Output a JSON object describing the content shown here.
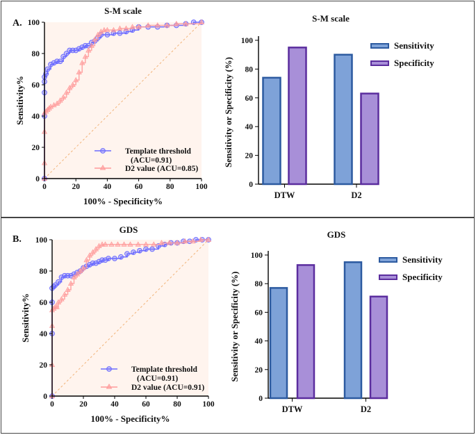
{
  "panels": [
    {
      "label": "A.",
      "roc": {
        "type": "line",
        "title": "S-M scale",
        "xlabel": "100% - Specificity%",
        "ylabel": "Sensitivity%",
        "xlim": [
          0,
          100
        ],
        "ylim": [
          0,
          100
        ],
        "ticks": [
          0,
          20,
          40,
          60,
          80,
          100
        ],
        "series": [
          {
            "name": "Template threshold",
            "legend_line1": "Template threshold",
            "legend_line2": "(ACU=0.91)",
            "color": "#6b6bff",
            "marker": "circle",
            "x": [
              0,
              0,
              0,
              0,
              0,
              1,
              2,
              4,
              6,
              8,
              10,
              12,
              14,
              16,
              18,
              20,
              22,
              24,
              26,
              28,
              30,
              32,
              34,
              36,
              40,
              44,
              48,
              52,
              56,
              60,
              66,
              72,
              78,
              84,
              90,
              95,
              100
            ],
            "y": [
              0,
              40,
              55,
              62,
              65,
              67,
              70,
              73,
              74,
              75,
              75,
              78,
              80,
              82,
              82,
              82,
              83,
              84,
              85,
              85,
              87,
              88,
              90,
              92,
              92,
              93,
              93,
              94,
              95,
              97,
              97,
              97,
              98,
              98,
              99,
              100,
              100
            ]
          },
          {
            "name": "D2 value",
            "legend_line1": "D2 value (ACU=0.85)",
            "legend_line2": "",
            "color": "#ff9a9a",
            "marker": "triangle",
            "x": [
              0,
              0,
              0,
              0,
              1,
              2,
              3,
              4,
              6,
              8,
              10,
              12,
              14,
              16,
              18,
              20,
              22,
              24,
              26,
              28,
              30,
              32,
              34,
              36,
              38,
              40,
              44,
              48,
              52,
              56,
              60,
              66,
              72,
              78,
              84,
              90,
              100
            ],
            "y": [
              0,
              10,
              30,
              42,
              43,
              44,
              45,
              46,
              47,
              48,
              50,
              52,
              55,
              58,
              60,
              63,
              68,
              74,
              78,
              82,
              85,
              89,
              92,
              94,
              95,
              95,
              95,
              96,
              96,
              97,
              97,
              98,
              98,
              98,
              99,
              99,
              100
            ]
          }
        ]
      },
      "bars": {
        "type": "bar",
        "title": "S-M scale",
        "ylabel": "Sensitivity or Specificity (%)",
        "ylim": [
          0,
          100
        ],
        "ticks": [
          0,
          20,
          40,
          60,
          80,
          100
        ],
        "categories": [
          "DTW",
          "D2"
        ],
        "series": [
          {
            "name": "Sensitivity",
            "values": [
              74,
              90
            ],
            "fill": "#7ea2d8",
            "stroke": "#2c5aa0"
          },
          {
            "name": "Specificity",
            "values": [
              95,
              63
            ],
            "fill": "#a88fd8",
            "stroke": "#5b2d9e"
          }
        ]
      }
    },
    {
      "label": "B.",
      "roc": {
        "type": "line",
        "title": "GDS",
        "xlabel": "100% - Specificity%",
        "ylabel": "Sensitivity%",
        "xlim": [
          0,
          100
        ],
        "ylim": [
          0,
          100
        ],
        "ticks": [
          0,
          20,
          40,
          60,
          80,
          100
        ],
        "series": [
          {
            "name": "Template threshold",
            "legend_line1": "Template threshold",
            "legend_line2": "(ACU=0.91)",
            "color": "#6b6bff",
            "marker": "circle",
            "x": [
              0,
              0,
              0,
              0,
              1,
              2,
              4,
              6,
              8,
              10,
              12,
              14,
              16,
              18,
              20,
              22,
              24,
              26,
              28,
              30,
              32,
              34,
              36,
              40,
              44,
              48,
              52,
              56,
              60,
              64,
              68,
              72,
              76,
              80,
              84,
              88,
              92,
              96,
              100
            ],
            "y": [
              0,
              40,
              60,
              69,
              70,
              71,
              73,
              76,
              77,
              77,
              77,
              78,
              79,
              80,
              82,
              83,
              84,
              85,
              85,
              86,
              87,
              87,
              88,
              88,
              89,
              91,
              92,
              93,
              94,
              94,
              96,
              97,
              98,
              98,
              99,
              99,
              100,
              100,
              100
            ]
          },
          {
            "name": "D2 value",
            "legend_line1": "D2 value (ACU=0.91)",
            "legend_line2": "",
            "color": "#ff9a9a",
            "marker": "triangle",
            "x": [
              0,
              0,
              0,
              0,
              1,
              2,
              3,
              4,
              6,
              8,
              10,
              12,
              14,
              16,
              18,
              20,
              22,
              24,
              26,
              28,
              30,
              32,
              34,
              38,
              42,
              46,
              50,
              55,
              60,
              65,
              70,
              75,
              80,
              85,
              90,
              95,
              100
            ],
            "y": [
              0,
              20,
              45,
              55,
              56,
              57,
              57,
              60,
              62,
              65,
              68,
              72,
              76,
              78,
              80,
              82,
              87,
              90,
              92,
              94,
              96,
              97,
              97,
              97,
              97,
              97,
              97,
              97,
              97,
              97,
              98,
              98,
              98,
              99,
              99,
              100,
              100
            ]
          }
        ]
      },
      "bars": {
        "type": "bar",
        "title": "GDS",
        "ylabel": "Sensitivity or Specificity (%)",
        "ylim": [
          0,
          100
        ],
        "ticks": [
          0,
          20,
          40,
          60,
          80,
          100
        ],
        "categories": [
          "DTW",
          "D2"
        ],
        "series": [
          {
            "name": "Sensitivity",
            "values": [
              77,
              95
            ],
            "fill": "#7ea2d8",
            "stroke": "#2c5aa0"
          },
          {
            "name": "Specificity",
            "values": [
              93,
              71
            ],
            "fill": "#a88fd8",
            "stroke": "#5b2d9e"
          }
        ]
      }
    }
  ],
  "chart_data": [
    {
      "type": "line",
      "title": "S-M scale",
      "xlabel": "100% - Specificity%",
      "ylabel": "Sensitivity%",
      "xlim": [
        0,
        100
      ],
      "ylim": [
        0,
        100
      ],
      "legend": [
        "Template threshold (ACU=0.91)",
        "D2 value (ACU=0.85)"
      ]
    },
    {
      "type": "bar",
      "title": "S-M scale",
      "categories": [
        "DTW",
        "D2"
      ],
      "ylabel": "Sensitivity or Specificity (%)",
      "ylim": [
        0,
        100
      ],
      "series": [
        {
          "name": "Sensitivity",
          "values": [
            74,
            90
          ]
        },
        {
          "name": "Specificity",
          "values": [
            95,
            63
          ]
        }
      ]
    },
    {
      "type": "line",
      "title": "GDS",
      "xlabel": "100% - Specificity%",
      "ylabel": "Sensitivity%",
      "xlim": [
        0,
        100
      ],
      "ylim": [
        0,
        100
      ],
      "legend": [
        "Template threshold (ACU=0.91)",
        "D2 value (ACU=0.91)"
      ]
    },
    {
      "type": "bar",
      "title": "GDS",
      "categories": [
        "DTW",
        "D2"
      ],
      "ylabel": "Sensitivity or Specificity (%)",
      "ylim": [
        0,
        100
      ],
      "series": [
        {
          "name": "Sensitivity",
          "values": [
            77,
            95
          ]
        },
        {
          "name": "Specificity",
          "values": [
            93,
            71
          ]
        }
      ]
    }
  ]
}
